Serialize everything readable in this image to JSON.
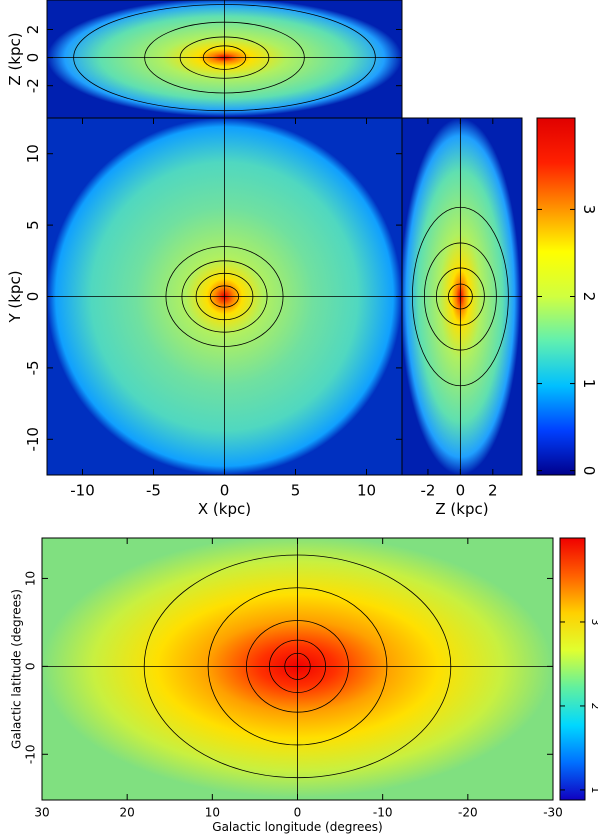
{
  "chart_data": [
    {
      "type": "heatmap",
      "ylabel": "Z (kpc)",
      "ylim": [
        -4.3,
        4.1
      ],
      "yticks": [
        2,
        0,
        -2
      ]
    },
    {
      "type": "heatmap",
      "xlabel": "X (kpc)",
      "ylabel": "Y (kpc)",
      "xlim": [
        -12.5,
        12.5
      ],
      "ylim": [
        -12.5,
        12.5
      ],
      "xticks": [
        -10,
        -5,
        0,
        5,
        10
      ],
      "yticks": [
        10,
        5,
        0,
        -5,
        -10
      ]
    },
    {
      "type": "heatmap",
      "xlabel": "Z (kpc)",
      "xlim": [
        -3.6,
        3.8
      ],
      "xticks": [
        -2,
        0,
        2
      ]
    },
    {
      "type": "colorbar",
      "ylim": [
        -0.05,
        4.05
      ],
      "yticks": [
        0,
        1,
        2,
        3
      ],
      "colors": [
        "#00008c",
        "#0040ff",
        "#00c0ff",
        "#60f0b0",
        "#d0ff40",
        "#ffff00",
        "#ff9000",
        "#ff2000",
        "#e00000"
      ]
    },
    {
      "type": "heatmap",
      "xlabel": "Galactic longitude (degrees)",
      "ylabel": "Galactic latitude (degrees)",
      "xlim": [
        30,
        -30
      ],
      "ylim": [
        -15.2,
        14.6
      ],
      "xticks": [
        30,
        20,
        10,
        0,
        -10,
        -20,
        -30
      ],
      "yticks": [
        10,
        0,
        -10
      ]
    },
    {
      "type": "colorbar",
      "ylim": [
        0.88,
        4.0
      ],
      "yticks": [
        1,
        2,
        3
      ],
      "colors": [
        "#1000c0",
        "#0070ff",
        "#00d8ff",
        "#60f0a0",
        "#e0ff30",
        "#ffd000",
        "#ff6000",
        "#f00000"
      ]
    }
  ]
}
